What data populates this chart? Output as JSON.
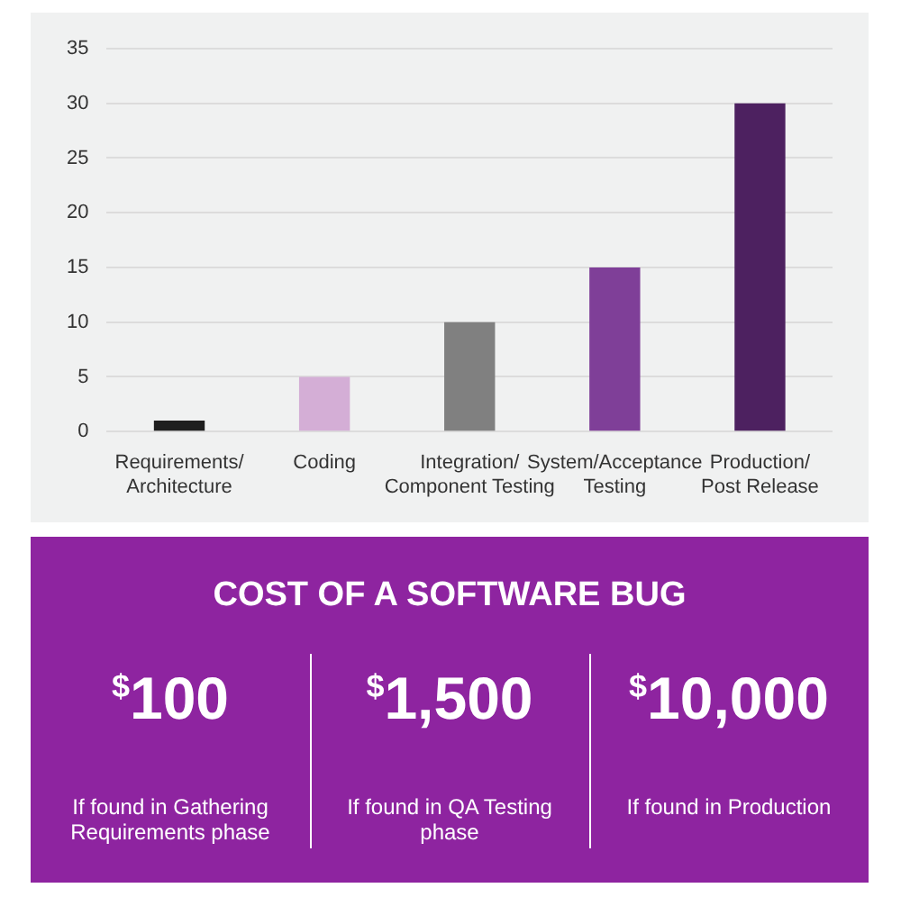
{
  "chart_data": [
    {
      "type": "bar",
      "categories": [
        "Requirements/ Architecture",
        "Coding",
        "Integration/ Component Testing",
        "System/Acceptance Testing",
        "Production/ Post Release"
      ],
      "values": [
        1,
        5,
        10,
        15,
        30
      ],
      "colors": [
        "#1e1e1e",
        "#d4aed6",
        "#808080",
        "#7f3f98",
        "#4d2160"
      ],
      "ylim": [
        0,
        35
      ],
      "yticks": [
        0,
        5,
        10,
        15,
        20,
        25,
        30,
        35
      ],
      "grid": "y",
      "legend": false
    },
    {
      "type": "other",
      "title": "COST OF A SOFTWARE BUG",
      "annotations": [
        "$^{$}$100",
        "If found in Gathering Requirements phase",
        "$^{$}$1,500",
        "If found in QA Testing phase",
        "$^{$}$10,000",
        "If found in Production"
      ]
    }
  ]
}
